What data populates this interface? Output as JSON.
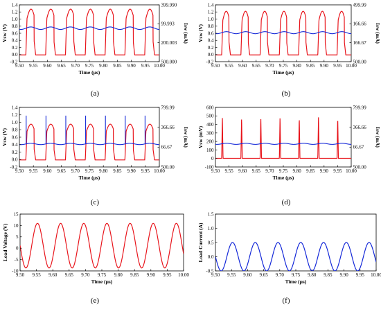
{
  "chart_data": [
    {
      "caption": "(a)",
      "type": "line",
      "xlabel": "Time (µs)",
      "ylabel": "Vsw (V)",
      "y2label": "Isw (mA)",
      "xlim": [
        9.5,
        10.0
      ],
      "ylim": [
        -0.2,
        1.4
      ],
      "y2lim": [
        -500,
        400
      ],
      "xticks": [
        "9.50",
        "9.55",
        "9.60",
        "9.65",
        "9.70",
        "9.75",
        "9.80",
        "9.85",
        "9.90",
        "9.95",
        "10.00"
      ],
      "yticks": [
        "-0.2",
        "0.0",
        "0.2",
        "0.4",
        "0.6",
        "0.8",
        "1.0",
        "1.2",
        "1.4"
      ],
      "y2ticks": [
        {
          "label": "399.990",
          "v": 399.99
        },
        {
          "label": "99.993",
          "v": 99.993
        },
        {
          "label": "200.003",
          "v": -200.003
        },
        {
          "label": "500.000",
          "v": -500
        }
      ],
      "period": 0.0708,
      "phase": 9.523,
      "series": [
        {
          "axis": "left",
          "shape": "switch",
          "high": 1.28,
          "low": -0.01,
          "duty": 0.42,
          "color": "#e8141b"
        },
        {
          "axis": "right",
          "shape": "sine",
          "offset": 30,
          "amp": 20,
          "color": "#1428d8"
        }
      ]
    },
    {
      "caption": "(b)",
      "type": "line",
      "xlabel": "Time (µs)",
      "ylabel": "Vsw (V)",
      "y2label": "Isw (mA)",
      "xlim": [
        9.5,
        10.0
      ],
      "ylim": [
        -0.2,
        1.4
      ],
      "y2lim": [
        -500,
        500
      ],
      "xticks": [
        "9.50",
        "9.55",
        "9.60",
        "9.65",
        "9.70",
        "9.75",
        "9.80",
        "9.85",
        "9.90",
        "9.95",
        "10.00"
      ],
      "yticks": [
        "-0.2",
        "0.0",
        "0.2",
        "0.4",
        "0.6",
        "0.8",
        "1.0",
        "1.2",
        "1.4"
      ],
      "y2ticks": [
        {
          "label": "499.99",
          "v": 499.99
        },
        {
          "label": "166.66",
          "v": 166.66
        },
        {
          "label": "166.67",
          "v": -166.67
        },
        {
          "label": "500.00",
          "v": -500
        }
      ],
      "period": 0.0708,
      "phase": 9.523,
      "series": [
        {
          "axis": "left",
          "shape": "switch",
          "high": 1.22,
          "low": -0.01,
          "duty": 0.38,
          "color": "#e8141b"
        },
        {
          "axis": "right",
          "shape": "sine",
          "offset": 10,
          "amp": 18,
          "color": "#1428d8"
        }
      ]
    },
    {
      "caption": "(c)",
      "type": "line",
      "xlabel": "Time (µs)",
      "ylabel": "Vsw (V)",
      "y2label": "Isw (mA)",
      "xlim": [
        9.5,
        10.0
      ],
      "ylim": [
        -0.2,
        1.4
      ],
      "y2lim": [
        -500,
        800
      ],
      "xticks": [
        "9.50",
        "9.55",
        "9.60",
        "9.65",
        "9.70",
        "9.75",
        "9.80",
        "9.85",
        "9.90",
        "9.95",
        "10.00"
      ],
      "yticks": [
        "-0.2",
        "0.0",
        "0.2",
        "0.4",
        "0.6",
        "0.8",
        "1.0",
        "1.2",
        "1.4"
      ],
      "y2ticks": [
        {
          "label": "799.99",
          "v": 799.99
        },
        {
          "label": "366.66",
          "v": 366.66
        },
        {
          "label": "66.67",
          "v": -66.67
        },
        {
          "label": "500.00",
          "v": -500
        }
      ],
      "period": 0.0708,
      "phase": 9.523,
      "series": [
        {
          "axis": "left",
          "shape": "switch",
          "high": 0.95,
          "low": -0.01,
          "duty": 0.42,
          "color": "#e8141b"
        },
        {
          "axis": "right",
          "shape": "sine-spikes",
          "offset": 2,
          "amp": 14,
          "spike": 620,
          "color": "#1428d8"
        }
      ]
    },
    {
      "caption": "(d)",
      "type": "line",
      "xlabel": "Time (µs)",
      "ylabel": "Vsw (mV)",
      "y2label": "Isw (mA)",
      "xlim": [
        9.5,
        10.0
      ],
      "ylim": [
        -100,
        600
      ],
      "y2lim": [
        -500,
        800
      ],
      "xticks": [
        "9.50",
        "9.55",
        "9.60",
        "9.65",
        "9.70",
        "9.75",
        "9.80",
        "9.85",
        "9.90",
        "9.95",
        "10.00"
      ],
      "yticks": [
        "-100",
        "0",
        "100",
        "200",
        "300",
        "400",
        "500",
        "600"
      ],
      "y2ticks": [
        {
          "label": "799.99",
          "v": 799.99
        },
        {
          "label": "366.66",
          "v": 366.66
        },
        {
          "label": "66.67",
          "v": -66.67
        },
        {
          "label": "500.00",
          "v": -500
        }
      ],
      "period": 0.0708,
      "phase": 9.523,
      "series": [
        {
          "axis": "left",
          "shape": "pulse",
          "high": 490,
          "low": 2,
          "color": "#e8141b"
        },
        {
          "axis": "right",
          "shape": "sine",
          "offset": 5,
          "amp": 12,
          "color": "#1428d8"
        }
      ]
    },
    {
      "caption": "(e)",
      "type": "line",
      "xlabel": "Time (µs)",
      "ylabel": "Load Voltage (V)",
      "xlim": [
        9.5,
        10.0
      ],
      "ylim": [
        -12,
        15
      ],
      "xticks": [
        "9.50",
        "9.55",
        "9.60",
        "9.65",
        "9.70",
        "9.75",
        "9.80",
        "9.85",
        "9.90",
        "9.95",
        "10.00"
      ],
      "yticks": [
        "-10",
        "-5",
        "0",
        "5",
        "10",
        "15"
      ],
      "period": 0.0708,
      "phase": 9.5,
      "series": [
        {
          "axis": "left",
          "shape": "pure-sine",
          "amp": 10.6,
          "peak": 9.5532,
          "color": "#e8141b"
        }
      ]
    },
    {
      "caption": "(f)",
      "type": "line",
      "xlabel": "Time (µs)",
      "ylabel": "Load Current (A)",
      "xlim": [
        9.5,
        10.0
      ],
      "ylim": [
        -0.5,
        1.5
      ],
      "xticks": [
        "9.50",
        "9.55",
        "9.60",
        "9.65",
        "9.70",
        "9.75",
        "9.80",
        "9.85",
        "9.90",
        "9.95",
        "10.00"
      ],
      "yticks": [
        "-0.5",
        "0.0",
        "0.5",
        "1.0",
        "1.5"
      ],
      "period": 0.0708,
      "phase": 9.5,
      "series": [
        {
          "axis": "left",
          "shape": "pure-sine",
          "amp": 0.5,
          "peak": 9.5532,
          "color": "#1428d8"
        }
      ]
    }
  ]
}
